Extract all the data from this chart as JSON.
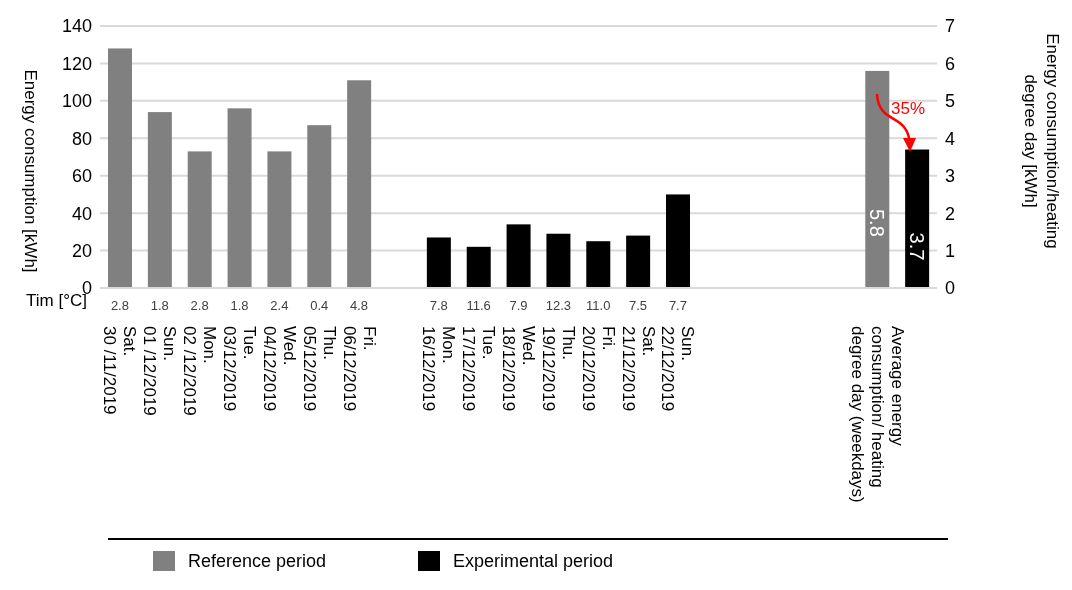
{
  "chart_data": {
    "type": "bar",
    "ylabel": "Energy consumption [kWh]",
    "y2label": "Energy consumption/heating\ndegree day [kWh]",
    "categories": [
      "Sat.\n30 /11/2019",
      "Sun.\n01 /12/2019",
      "Mon.\n02 /12/2019",
      "Tue.\n03/12/2019",
      "Wed.\n04/12/2019",
      "Thu.\n05/12/2019",
      "Fri.\n06/12/2019",
      null,
      "Mon.\n16/12/2019",
      "Tue.\n17/12/2019",
      "Wed.\n18/12/2019",
      "Thu.\n19/12/2019",
      "Fri.\n20/12/2019",
      "Sat.\n21/12/2019",
      "Sun.\n22/12/2019",
      null,
      null,
      null,
      null,
      "Average energy\nconsumption/ heating\ndegree day (weekdays)",
      null
    ],
    "series": [
      {
        "name": "Reference period",
        "color": "#808080",
        "values": [
          128,
          94,
          73,
          96,
          73,
          87,
          111,
          null,
          null,
          null,
          null,
          null,
          null,
          null,
          null,
          null,
          null,
          null,
          null,
          null,
          null
        ]
      },
      {
        "name": "Experimental period",
        "color": "#000000",
        "values": [
          null,
          null,
          null,
          null,
          null,
          null,
          null,
          null,
          27,
          22,
          34,
          29,
          25,
          28,
          50,
          null,
          null,
          null,
          null,
          null,
          null
        ]
      },
      {
        "color": "#808080",
        "axis": "y2",
        "values": [
          null,
          null,
          null,
          null,
          null,
          null,
          null,
          null,
          null,
          null,
          null,
          null,
          null,
          null,
          null,
          null,
          null,
          null,
          null,
          5.8,
          null
        ],
        "value_labels": [
          null,
          null,
          null,
          null,
          null,
          null,
          null,
          null,
          null,
          null,
          null,
          null,
          null,
          null,
          null,
          null,
          null,
          null,
          null,
          "5.8",
          null
        ]
      },
      {
        "color": "#000000",
        "axis": "y2",
        "values": [
          null,
          null,
          null,
          null,
          null,
          null,
          null,
          null,
          null,
          null,
          null,
          null,
          null,
          null,
          null,
          null,
          null,
          null,
          null,
          null,
          3.7
        ],
        "value_labels": [
          null,
          null,
          null,
          null,
          null,
          null,
          null,
          null,
          null,
          null,
          null,
          null,
          null,
          null,
          null,
          null,
          null,
          null,
          null,
          null,
          "3.7"
        ]
      }
    ],
    "ylim": [
      0,
      140
    ],
    "yticks": [
      0,
      20,
      40,
      60,
      80,
      100,
      120,
      140
    ],
    "y2lim": [
      0,
      7
    ],
    "y2ticks": [
      0,
      1,
      2,
      3,
      4,
      5,
      6,
      7
    ],
    "grid": "y",
    "legend": "bottom",
    "annotations": [
      "Tim [°C]",
      "2.8",
      "1.8",
      "2.8",
      "1.8",
      "2.4",
      "0.4",
      "4.8",
      "7.8",
      "11.6",
      "7.9",
      "12.3",
      "11.0",
      "7.5",
      "7.7",
      "35%"
    ]
  }
}
